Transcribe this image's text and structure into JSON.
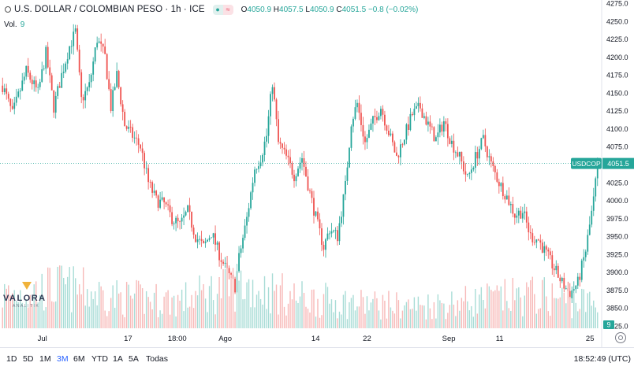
{
  "header": {
    "symbol": "U.S. DOLLAR / COLOMBIAN PESO · 1h · ICE",
    "ohlc": {
      "o_label": "O",
      "o": "4050.9",
      "h_label": "H",
      "h": "4057.5",
      "l_label": "L",
      "l": "4050.9",
      "c_label": "C",
      "c": "4051.5",
      "change": "−0.8 (−0.02%)"
    },
    "volume_label": "Vol.",
    "volume_value": "9"
  },
  "price_tag": {
    "ticker": "USDCOP",
    "price": "4051.5"
  },
  "volume_tag": "9",
  "logo": {
    "name": "VALORA",
    "sub": "ANALITIK"
  },
  "timeframes": [
    "1D",
    "5D",
    "1M",
    "3M",
    "6M",
    "YTD",
    "1A",
    "5A",
    "Todas"
  ],
  "active_timeframe": "3M",
  "clock": "18:52:49 (UTC)",
  "colors": {
    "up": "#26a69a",
    "down": "#ef5350",
    "vol_up": "#a8dcd6",
    "vol_down": "#f7b9b8",
    "accent": "#2962ff"
  },
  "chart_data": {
    "type": "candlestick",
    "interval": "1h",
    "y_ticks": [
      3825,
      3850,
      3875,
      3900,
      3925,
      3950,
      3975,
      4000,
      4025,
      4050,
      4075,
      4100,
      4125,
      4150,
      4175,
      4200,
      4225,
      4250,
      4275
    ],
    "y_tick_labels": [
      "3825.0",
      "3850.0",
      "3875.0",
      "3900.0",
      "3925.0",
      "3950.0",
      "3975.0",
      "4000.0",
      "4025.0",
      "4050.0",
      "4075.0",
      "4100.0",
      "4125.0",
      "4150.0",
      "4175.0",
      "4200.0",
      "4225.0",
      "4250.0",
      "4275.0"
    ],
    "ylim": [
      3825,
      4275
    ],
    "x_ticks": [
      {
        "label": "Jul",
        "pos": 0.074
      },
      {
        "label": "17",
        "pos": 0.224
      },
      {
        "label": "18:00",
        "pos": 0.31
      },
      {
        "label": "Ago",
        "pos": 0.394
      },
      {
        "label": "14",
        "pos": 0.552
      },
      {
        "label": "22",
        "pos": 0.642
      },
      {
        "label": "Sep",
        "pos": 0.785
      },
      {
        "label": "11",
        "pos": 0.874
      },
      {
        "label": "25",
        "pos": 1.032
      }
    ],
    "last_price": 4051.5,
    "path": [
      [
        0,
        4160
      ],
      [
        5,
        4120
      ],
      [
        12,
        4180
      ],
      [
        18,
        4150
      ],
      [
        22,
        4205
      ],
      [
        26,
        4130
      ],
      [
        30,
        4175
      ],
      [
        34,
        4215
      ],
      [
        37,
        4235
      ],
      [
        40,
        4140
      ],
      [
        44,
        4160
      ],
      [
        48,
        4225
      ],
      [
        52,
        4200
      ],
      [
        55,
        4130
      ],
      [
        58,
        4175
      ],
      [
        62,
        4105
      ],
      [
        66,
        4090
      ],
      [
        70,
        4075
      ],
      [
        74,
        4025
      ],
      [
        78,
        4000
      ],
      [
        82,
        3995
      ],
      [
        86,
        3975
      ],
      [
        90,
        3965
      ],
      [
        94,
        3985
      ],
      [
        98,
        3950
      ],
      [
        102,
        3935
      ],
      [
        106,
        3955
      ],
      [
        110,
        3925
      ],
      [
        114,
        3900
      ],
      [
        118,
        3880
      ],
      [
        120,
        3920
      ],
      [
        124,
        3975
      ],
      [
        128,
        4045
      ],
      [
        131,
        4060
      ],
      [
        134,
        4090
      ],
      [
        137,
        4165
      ],
      [
        140,
        4080
      ],
      [
        144,
        4060
      ],
      [
        148,
        4035
      ],
      [
        152,
        4060
      ],
      [
        156,
        4010
      ],
      [
        160,
        3965
      ],
      [
        163,
        3935
      ],
      [
        166,
        3960
      ],
      [
        170,
        3950
      ],
      [
        174,
        4020
      ],
      [
        177,
        4110
      ],
      [
        180,
        4135
      ],
      [
        184,
        4080
      ],
      [
        188,
        4110
      ],
      [
        192,
        4130
      ],
      [
        196,
        4095
      ],
      [
        200,
        4060
      ],
      [
        204,
        4090
      ],
      [
        208,
        4120
      ],
      [
        212,
        4130
      ],
      [
        216,
        4105
      ],
      [
        220,
        4085
      ],
      [
        224,
        4110
      ],
      [
        228,
        4080
      ],
      [
        232,
        4060
      ],
      [
        236,
        4030
      ],
      [
        240,
        4060
      ],
      [
        244,
        4085
      ],
      [
        248,
        4050
      ],
      [
        252,
        4025
      ],
      [
        256,
        4005
      ],
      [
        260,
        3980
      ],
      [
        264,
        3985
      ],
      [
        268,
        3950
      ],
      [
        272,
        3945
      ],
      [
        276,
        3925
      ],
      [
        280,
        3905
      ],
      [
        284,
        3885
      ],
      [
        288,
        3870
      ],
      [
        292,
        3885
      ],
      [
        296,
        3930
      ],
      [
        300,
        4000
      ],
      [
        302,
        4051
      ]
    ],
    "volume_path": [
      [
        0,
        60
      ],
      [
        30,
        75
      ],
      [
        60,
        55
      ],
      [
        90,
        50
      ],
      [
        120,
        80
      ],
      [
        150,
        55
      ],
      [
        180,
        45
      ],
      [
        210,
        40
      ],
      [
        240,
        50
      ],
      [
        270,
        60
      ],
      [
        300,
        45
      ]
    ]
  }
}
